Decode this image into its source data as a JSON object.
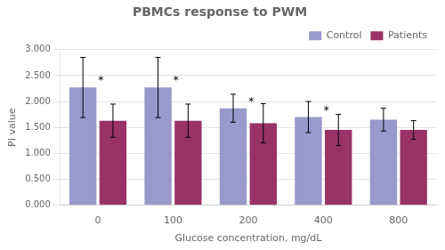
{
  "chart_data": {
    "type": "bar",
    "title": "PBMCs response to PWM",
    "xlabel": "Glucose concentration, mg/dL",
    "ylabel": "PI value",
    "categories": [
      "0",
      "100",
      "200",
      "400",
      "800"
    ],
    "series": [
      {
        "name": "Control",
        "color": "#9999cc",
        "values": [
          2.27,
          2.27,
          1.87,
          1.7,
          1.65
        ],
        "errors": [
          0.58,
          0.58,
          0.27,
          0.3,
          0.22
        ]
      },
      {
        "name": "Patients",
        "color": "#993366",
        "values": [
          1.63,
          1.63,
          1.58,
          1.45,
          1.45
        ],
        "errors": [
          0.32,
          0.32,
          0.38,
          0.3,
          0.18
        ]
      }
    ],
    "annotations": [
      {
        "text": "*",
        "category": "0",
        "series": "Control"
      },
      {
        "text": "*",
        "category": "100",
        "series": "Control"
      },
      {
        "text": "*",
        "category": "200",
        "series": "Control"
      },
      {
        "text": "*",
        "category": "400",
        "series": "Control"
      }
    ],
    "ylim": [
      0.0,
      3.0
    ],
    "yticks": [
      {
        "value": 0.0,
        "label": "0.000"
      },
      {
        "value": 0.5,
        "label": "0.500"
      },
      {
        "value": 1.0,
        "label": "1.000"
      },
      {
        "value": 1.5,
        "label": "1.500"
      },
      {
        "value": 2.0,
        "label": "2.000"
      },
      {
        "value": 2.5,
        "label": "2.500"
      },
      {
        "value": 3.0,
        "label": "3.000"
      }
    ],
    "grid": true,
    "legend": "upper right"
  }
}
